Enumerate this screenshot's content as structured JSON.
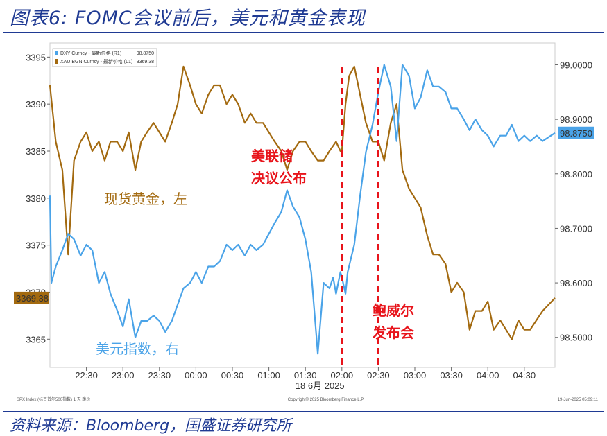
{
  "header": {
    "title": "图表6:  FOMC会议前后，美元和黄金表现",
    "source": "资料来源：Bloomberg，国盛证券研究所"
  },
  "colors": {
    "gold": "#a36a10",
    "dxy": "#4aa3e8",
    "event": "#e8141b",
    "rule": "#1f3a93"
  },
  "chart_data": {
    "type": "line",
    "x_tick_labels": [
      "22:30",
      "23:00",
      "23:30",
      "00:00",
      "00:30",
      "01:00",
      "01:30",
      "02:00",
      "02:30",
      "03:00",
      "03:30",
      "04:00",
      "04:30"
    ],
    "x_axis_caption": "18 6月 2025",
    "left_axis": {
      "ticks": [
        3365,
        3370,
        3375,
        3380,
        3385,
        3390,
        3395
      ],
      "ylim": [
        3362,
        3396.5
      ],
      "current_label": "3369.38"
    },
    "right_axis": {
      "ticks": [
        "98.5000",
        "98.6000",
        "98.7000",
        "98.8000",
        "98.9000",
        "99.0000"
      ],
      "ylim": [
        98.445,
        99.04
      ],
      "current_label": "98.8750"
    },
    "legend": [
      {
        "name": "DXY Curncy - 最新价格 (R1)",
        "value": "98.8750"
      },
      {
        "name": "XAU BGN Curncy - 最新价格 (L1)",
        "value": "3369.38"
      }
    ],
    "series": [
      {
        "name": "现货黄金，左",
        "axis": "left",
        "x": [
          22.0,
          22.08,
          22.17,
          22.25,
          22.33,
          22.42,
          22.5,
          22.58,
          22.67,
          22.75,
          22.83,
          22.92,
          23.0,
          23.08,
          23.17,
          23.25,
          23.33,
          23.42,
          23.5,
          23.58,
          23.67,
          23.75,
          23.83,
          23.92,
          24.0,
          24.08,
          24.17,
          24.25,
          24.33,
          24.42,
          24.5,
          24.58,
          24.67,
          24.75,
          24.83,
          24.92,
          25.0,
          25.08,
          25.17,
          25.25,
          25.33,
          25.42,
          25.5,
          25.58,
          25.67,
          25.75,
          25.83,
          25.92,
          25.98,
          26.0,
          26.05,
          26.1,
          26.17,
          26.25,
          26.33,
          26.42,
          26.5,
          26.58,
          26.67,
          26.75,
          26.83,
          26.92,
          27.0,
          27.08,
          27.17,
          27.25,
          27.33,
          27.42,
          27.5,
          27.58,
          27.67,
          27.75,
          27.83,
          27.92,
          28.0,
          28.08,
          28.17,
          28.25,
          28.33,
          28.42,
          28.5,
          28.58,
          28.75,
          28.92
        ],
        "values": [
          3392,
          3386,
          3383,
          3374,
          3384,
          3386,
          3387,
          3385,
          3386,
          3384,
          3386,
          3386,
          3385,
          3387,
          3383,
          3386,
          3387,
          3388,
          3387,
          3386,
          3388,
          3390,
          3394,
          3392,
          3390,
          3389,
          3391,
          3392,
          3392,
          3390,
          3391,
          3390,
          3388,
          3389,
          3388,
          3388,
          3387,
          3386,
          3385,
          3383,
          3385,
          3386,
          3386,
          3385,
          3384,
          3384,
          3385,
          3386,
          3385,
          3385,
          3390,
          3393,
          3394,
          3391,
          3388,
          3386,
          3386,
          3384,
          3388,
          3390,
          3383,
          3381,
          3380,
          3379,
          3376,
          3374,
          3374,
          3373,
          3370,
          3371,
          3370,
          3366,
          3368,
          3368,
          3369,
          3366,
          3367,
          3366,
          3365,
          3367,
          3366,
          3366,
          3368,
          3369.38
        ]
      },
      {
        "name": "美元指数，右",
        "axis": "right",
        "x": [
          22.0,
          22.02,
          22.08,
          22.17,
          22.25,
          22.33,
          22.42,
          22.5,
          22.58,
          22.67,
          22.75,
          22.83,
          22.92,
          23.0,
          23.08,
          23.17,
          23.25,
          23.33,
          23.42,
          23.5,
          23.58,
          23.67,
          23.75,
          23.83,
          23.92,
          24.0,
          24.08,
          24.17,
          24.25,
          24.33,
          24.42,
          24.5,
          24.58,
          24.67,
          24.75,
          24.83,
          24.92,
          25.0,
          25.08,
          25.17,
          25.25,
          25.33,
          25.42,
          25.5,
          25.58,
          25.67,
          25.75,
          25.83,
          25.88,
          25.92,
          25.98,
          26.0,
          26.05,
          26.08,
          26.17,
          26.25,
          26.33,
          26.42,
          26.5,
          26.58,
          26.67,
          26.75,
          26.83,
          26.92,
          27.0,
          27.08,
          27.17,
          27.25,
          27.33,
          27.42,
          27.5,
          27.58,
          27.67,
          27.75,
          27.83,
          27.92,
          28.0,
          28.08,
          28.17,
          28.25,
          28.33,
          28.42,
          28.5,
          28.58,
          28.67,
          28.75,
          28.92
        ],
        "values": [
          98.76,
          98.6,
          98.63,
          98.66,
          98.69,
          98.68,
          98.65,
          98.67,
          98.66,
          98.6,
          98.62,
          98.58,
          98.55,
          98.52,
          98.57,
          98.5,
          98.53,
          98.53,
          98.54,
          98.53,
          98.51,
          98.53,
          98.56,
          98.59,
          98.6,
          98.62,
          98.6,
          98.63,
          98.63,
          98.64,
          98.67,
          98.66,
          98.67,
          98.65,
          98.67,
          98.66,
          98.67,
          98.69,
          98.71,
          98.73,
          98.77,
          98.74,
          98.72,
          98.68,
          98.62,
          98.47,
          98.6,
          98.59,
          98.61,
          98.58,
          98.62,
          98.61,
          98.58,
          98.62,
          98.67,
          98.76,
          98.84,
          98.89,
          98.95,
          99.0,
          98.96,
          98.86,
          99.0,
          98.98,
          98.92,
          98.94,
          98.99,
          98.96,
          98.96,
          98.95,
          98.92,
          98.92,
          98.9,
          98.88,
          98.9,
          98.88,
          98.87,
          98.85,
          98.87,
          98.87,
          98.89,
          98.86,
          98.87,
          98.86,
          98.87,
          98.86,
          98.875
        ]
      }
    ],
    "annotations": [
      {
        "text": [
          "美联储",
          "决议公布"
        ],
        "x": 26.0,
        "color": "red"
      },
      {
        "text": [
          "鲍威尔",
          "发布会"
        ],
        "x": 26.5,
        "color": "red"
      }
    ],
    "footer": {
      "left": "SPX Index (标普普尔500指数) 1 天  跳价",
      "center": "Copyright© 2025 Bloomberg Finance L.P.",
      "right": "19-Jun-2025 05:09:11"
    }
  }
}
